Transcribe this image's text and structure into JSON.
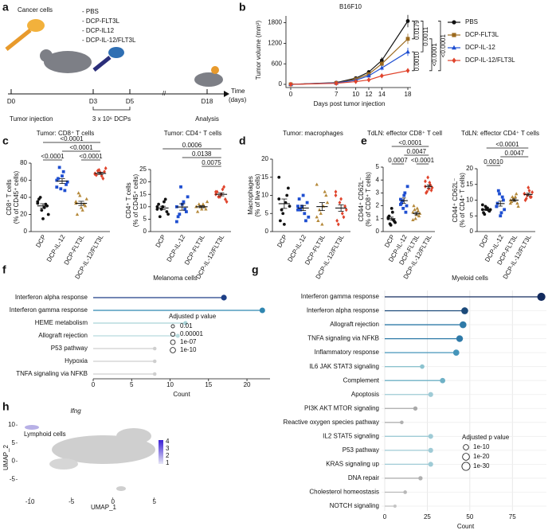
{
  "diagram": {
    "panel": "a",
    "cells_label": "Cancer cells",
    "treatments": [
      "- PBS",
      "- DCP-FLT3L",
      "- DCP-IL12",
      "- DCP-IL-12/FLT3L"
    ],
    "days": [
      "D0",
      "D3",
      "D5",
      "D18"
    ],
    "events": [
      "Tumor injection",
      "3 x 10⁶ DCPs",
      "Analysis"
    ],
    "axis_label": [
      "Time",
      "(days)"
    ]
  },
  "chart_data": [
    {
      "type": "line",
      "panel": "b",
      "title": "B16F10",
      "xlabel": "Days post tumor injection",
      "ylabel": "Tumor volume (mm³)",
      "x": [
        0,
        7,
        10,
        12,
        14,
        18
      ],
      "xlim": [
        0,
        18
      ],
      "xticks": [
        0,
        7,
        10,
        12,
        14,
        18
      ],
      "ylim": [
        0,
        2000
      ],
      "yticks": [
        0,
        600,
        1200,
        1800
      ],
      "legend": "right",
      "series": [
        {
          "name": "PBS",
          "color": "#111111",
          "marker": "circle",
          "values": [
            0,
            50,
            180,
            360,
            700,
            1850
          ],
          "errors": [
            0,
            10,
            30,
            50,
            90,
            180
          ]
        },
        {
          "name": "DCP-FLT3L",
          "color": "#9c6a1e",
          "marker": "square",
          "values": [
            0,
            40,
            150,
            300,
            600,
            1330
          ],
          "errors": [
            0,
            10,
            25,
            45,
            80,
            150
          ]
        },
        {
          "name": "DCP-IL-12",
          "color": "#1f4fd1",
          "marker": "triangle",
          "values": [
            0,
            40,
            120,
            250,
            480,
            950
          ],
          "errors": [
            0,
            8,
            20,
            40,
            70,
            120
          ]
        },
        {
          "name": "DCP-IL-12/FLT3L",
          "color": "#e0432b",
          "marker": "diamond",
          "values": [
            0,
            30,
            80,
            130,
            250,
            400
          ],
          "errors": [
            0,
            6,
            15,
            25,
            40,
            70
          ]
        }
      ],
      "comparisons": [
        {
          "groups": [
            0,
            3
          ],
          "label": "<0.0001"
        },
        {
          "groups": [
            1,
            3
          ],
          "label": "<0.0001"
        },
        {
          "groups": [
            0,
            2
          ],
          "label": "0.0011"
        },
        {
          "groups": [
            0,
            1
          ],
          "label": "0.0179"
        },
        {
          "groups": [
            2,
            3
          ],
          "label": "0.0010"
        }
      ]
    },
    {
      "type": "dot",
      "panel": "c",
      "title": "Tumor: CD8⁺ T cells",
      "ylabel": [
        "CD8⁺ T cells",
        "(% of CD45⁺ cells)"
      ],
      "categories": [
        "DCP",
        "DCP-IL-12",
        "DCP-FLT3L",
        "DCP-IL-12/FLT3L"
      ],
      "colors": [
        "#111111",
        "#1f4fd1",
        "#b5893a",
        "#e0432b"
      ],
      "markers": [
        "circle",
        "square",
        "triangle",
        "diamond"
      ],
      "points": [
        [
          35,
          30,
          28,
          25,
          38,
          20,
          32,
          15,
          40,
          33
        ],
        [
          60,
          55,
          70,
          50,
          62,
          58,
          48,
          65,
          75,
          52
        ],
        [
          35,
          30,
          25,
          42,
          20,
          38,
          32,
          28,
          45,
          33
        ],
        [
          68,
          70,
          65,
          72,
          66,
          74,
          62,
          69,
          71,
          67
        ]
      ],
      "means": [
        30,
        59,
        33,
        68
      ],
      "errors": [
        2.5,
        2.8,
        2.4,
        1.2
      ],
      "ylim": [
        0,
        80
      ],
      "yticks": [
        0,
        20,
        40,
        60,
        80
      ],
      "comparisons": [
        {
          "groups": [
            0,
            3
          ],
          "label": "<0.0001"
        },
        {
          "groups": [
            1,
            3
          ],
          "label": "<0.0001"
        },
        {
          "groups": [
            0,
            1
          ],
          "label": "<0.0001"
        },
        {
          "groups": [
            2,
            3
          ],
          "label": "<0.0001"
        }
      ]
    },
    {
      "type": "dot",
      "title": "Tumor: CD4⁺ T cells",
      "ylabel": [
        "CD4⁺ T cells",
        "(% of CD45⁺ cells)"
      ],
      "categories": [
        "DCP",
        "DCP-IL-12",
        "DCP-FLT3L",
        "DCP-IL-12/FLT3L"
      ],
      "colors": [
        "#111111",
        "#1f4fd1",
        "#b5893a",
        "#e0432b"
      ],
      "markers": [
        "circle",
        "square",
        "triangle",
        "diamond"
      ],
      "points": [
        [
          10,
          8,
          12,
          9,
          11,
          7,
          13,
          10,
          6,
          9
        ],
        [
          10,
          8,
          12,
          18,
          6,
          14,
          9,
          11,
          7,
          4
        ],
        [
          10,
          9,
          11,
          10,
          8,
          12,
          10,
          9,
          11,
          10
        ],
        [
          15,
          13,
          17,
          14,
          16,
          12,
          18,
          15,
          14,
          16
        ]
      ],
      "means": [
        9.5,
        9.9,
        10,
        15
      ],
      "errors": [
        0.7,
        1.3,
        0.4,
        0.6
      ],
      "ylim": [
        0,
        25
      ],
      "yticks": [
        0,
        5,
        10,
        15,
        20,
        25
      ],
      "comparisons": [
        {
          "groups": [
            0,
            3
          ],
          "label": "0.0006"
        },
        {
          "groups": [
            1,
            3
          ],
          "label": "0.0138"
        },
        {
          "groups": [
            2,
            3
          ],
          "label": "0.0075"
        }
      ]
    },
    {
      "type": "dot",
      "panel": "d",
      "title": "Tumor: macrophages",
      "ylabel": [
        "Macrophages",
        "(% of live cells)"
      ],
      "categories": [
        "DCP",
        "DCP-IL-12",
        "DCP-FLT3L",
        "DCP-IL-12/FLT3L"
      ],
      "colors": [
        "#111111",
        "#1f4fd1",
        "#b5893a",
        "#e0432b"
      ],
      "markers": [
        "circle",
        "square",
        "triangle",
        "diamond"
      ],
      "points": [
        [
          15,
          12,
          8,
          5,
          3,
          7,
          10,
          2,
          6,
          9
        ],
        [
          6,
          8,
          5,
          7,
          9,
          4,
          3,
          10,
          6,
          7
        ],
        [
          13,
          10,
          7,
          5,
          3,
          8,
          11,
          2,
          6,
          4
        ],
        [
          11,
          7,
          5,
          8,
          3,
          6,
          4,
          9,
          2,
          10
        ]
      ],
      "means": [
        7.7,
        6.5,
        6.9,
        6.5
      ],
      "errors": [
        1.3,
        0.7,
        1.1,
        0.9
      ],
      "ylim": [
        0,
        20
      ],
      "yticks": [
        0,
        5,
        10,
        15,
        20
      ],
      "comparisons": []
    },
    {
      "type": "dot",
      "panel": "e",
      "title": "TdLN: effector CD8⁺ T cell",
      "ylabel": [
        "CD44⁺ CD62L⁻",
        "(% of CD8⁺ T cells)"
      ],
      "categories": [
        "DCP",
        "DCP-IL-12",
        "DCP-FLT3L",
        "DCP-IL-12/FLT3L"
      ],
      "colors": [
        "#111111",
        "#1f4fd1",
        "#b5893a",
        "#e0432b"
      ],
      "markers": [
        "circle",
        "square",
        "triangle",
        "diamond"
      ],
      "points": [
        [
          1.0,
          0.8,
          1.5,
          0.5,
          1.2,
          0.7,
          0.9,
          1.8,
          0.6,
          1.1
        ],
        [
          2.5,
          2.0,
          3.0,
          1.8,
          2.2,
          3.5,
          1.5,
          2.8,
          2.4,
          2.1
        ],
        [
          1.5,
          1.2,
          1.8,
          1.0,
          2.0,
          1.4,
          1.6,
          1.3,
          1.7,
          0.9
        ],
        [
          3.5,
          3.2,
          3.8,
          4.2,
          3.0,
          3.4,
          3.6,
          3.3,
          3.1,
          3.9
        ]
      ],
      "means": [
        1.0,
        2.4,
        1.4,
        3.5
      ],
      "errors": [
        0.12,
        0.2,
        0.1,
        0.12
      ],
      "ylim": [
        0,
        5
      ],
      "yticks": [
        0,
        1,
        2,
        3,
        4,
        5
      ],
      "comparisons": [
        {
          "groups": [
            0,
            3
          ],
          "label": "<0.0001"
        },
        {
          "groups": [
            1,
            3
          ],
          "label": "0.0047"
        },
        {
          "groups": [
            0,
            1
          ],
          "label": "0.0007"
        },
        {
          "groups": [
            2,
            3
          ],
          "label": "<0.0001"
        }
      ]
    },
    {
      "type": "dot",
      "title": "TdLN: effector CD4⁺ T cells",
      "ylabel": [
        "CD44⁺ CD62L⁻",
        "(% of CD4⁺ T cells)"
      ],
      "categories": [
        "DCP",
        "DCP-IL-12",
        "DCP-FLT3L",
        "DCP-IL-12/FLT3L"
      ],
      "colors": [
        "#111111",
        "#1f4fd1",
        "#b5893a",
        "#e0432b"
      ],
      "markers": [
        "circle",
        "square",
        "triangle",
        "diamond"
      ],
      "points": [
        [
          7,
          6.5,
          7.5,
          8,
          6,
          7,
          6.8,
          7.2,
          5.5,
          8.5
        ],
        [
          8,
          10,
          6,
          12,
          9,
          7,
          11,
          5,
          13,
          8
        ],
        [
          10,
          9,
          11,
          10.5,
          9.5,
          8,
          12,
          10,
          11,
          9
        ],
        [
          12,
          11,
          13,
          11.5,
          10,
          12.5,
          11,
          14,
          10.5,
          12
        ]
      ],
      "means": [
        7,
        8.9,
        10,
        11.8
      ],
      "errors": [
        0.3,
        0.8,
        0.4,
        0.4
      ],
      "ylim": [
        0,
        20
      ],
      "yticks": [
        0,
        5,
        10,
        15,
        20
      ],
      "comparisons": [
        {
          "groups": [
            0,
            3
          ],
          "label": "<0.0001"
        },
        {
          "groups": [
            1,
            3
          ],
          "label": "0.0047"
        },
        {
          "groups": [
            0,
            1
          ],
          "label": "0.0010"
        }
      ]
    },
    {
      "type": "lollipop",
      "panel": "f",
      "title": "Melanoma cells",
      "xlabel": "Count",
      "grid": false,
      "categories": [
        "Interferon alpha response",
        "Interferon gamma response",
        "HEME metabolism",
        "Allograft rejection",
        "P53 pathway",
        "Hypoxia",
        "TNFA signaling via NFKB"
      ],
      "values": [
        17,
        22,
        12,
        11,
        8,
        8,
        8
      ],
      "sizes": [
        12,
        11,
        5,
        4,
        3,
        3,
        3
      ],
      "colors": [
        "#1d3f87",
        "#2f86b0",
        "#a9d3d8",
        "#b7dadd",
        "#cfcfcf",
        "#cfcfcf",
        "#cfcfcf"
      ],
      "xlim": [
        0,
        23
      ],
      "xticks": [
        0,
        5,
        10,
        15,
        20
      ],
      "legend_title": "Adjusted p value",
      "legend": [
        {
          "value": 2,
          "label": "0.01"
        },
        {
          "value": 5,
          "label": "0.00001"
        },
        {
          "value": 7,
          "label": "1e-07"
        },
        {
          "value": 10,
          "label": "1e-10"
        }
      ]
    },
    {
      "type": "lollipop",
      "panel": "g",
      "title": "Myeloid cells",
      "xlabel": "Count",
      "grid": true,
      "categories": [
        "Interferon gamma response",
        "Interferon alpha response",
        "Allograft rejection",
        "TNFA signaling via NFKB",
        "Inflammatory response",
        "IL6 JAK STAT3 signaling",
        "Complement",
        "Apoptosis",
        "PI3K AKT MTOR signaling",
        "Reactive oxygen species pathway",
        "IL2 STAT5 signaling",
        "P53 pathway",
        "KRAS signaling up",
        "DNA repair",
        "Cholesterol homeostasis",
        "NOTCH signaling"
      ],
      "values": [
        92,
        47,
        46,
        44,
        42,
        22,
        34,
        27,
        18,
        10,
        27,
        27,
        27,
        21,
        12,
        6
      ],
      "sizes": [
        30,
        20,
        19,
        18,
        15,
        6,
        10,
        8,
        5,
        3,
        8,
        8,
        8,
        5,
        3,
        2
      ],
      "colors": [
        "#132b5e",
        "#1b4a7a",
        "#2f7aa8",
        "#2f7aa8",
        "#4595ba",
        "#8cc3cf",
        "#6fb1c6",
        "#9fcbd6",
        "#a9a9a9",
        "#b0b0b0",
        "#9fcbd6",
        "#9fcbd6",
        "#9fcbd6",
        "#b0b0b0",
        "#b8b8b8",
        "#c4c4c4"
      ],
      "xlim": [
        0,
        95
      ],
      "xticks": [
        0,
        25,
        50,
        75
      ],
      "legend_title": "Adjusted p value",
      "legend": [
        {
          "value": 10,
          "label": "1e-10"
        },
        {
          "value": 20,
          "label": "1e-20"
        },
        {
          "value": 30,
          "label": "1e-30"
        }
      ]
    },
    {
      "type": "umap",
      "panel": "h",
      "title": "Ifng",
      "annotation": "Lymphoid cells",
      "xlabel": "UMAP_1",
      "ylabel": "UMAP_2",
      "xlim": [
        -11.5,
        8
      ],
      "xticks": [
        -10,
        -5,
        0,
        5
      ],
      "ylim": [
        -10,
        12
      ],
      "yticks": [
        -5,
        0,
        5,
        10
      ],
      "colorbar_ticks": [
        1,
        2,
        3,
        4
      ]
    }
  ]
}
